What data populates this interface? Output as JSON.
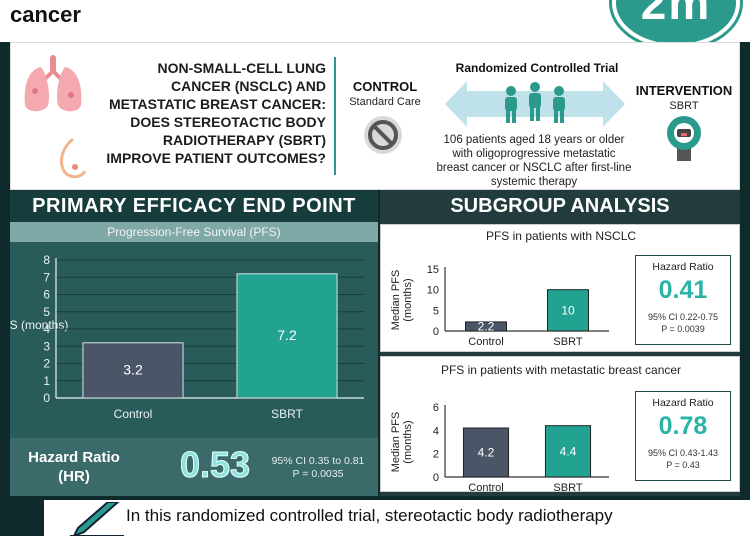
{
  "header": {
    "title": "cancer",
    "logo_text": "2m"
  },
  "top": {
    "question": "NON-SMALL-CELL LUNG CANCER (NSCLC) AND METASTATIC BREAST CANCER: DOES STEREOTACTIC BODY RADIOTHERAPY (SBRT) IMPROVE PATIENT OUTCOMES?",
    "control_title": "CONTROL",
    "control_sub": "Standard Care",
    "rct_title": "Randomized Controlled Trial",
    "rct_desc": "106 patients aged 18 years or older with oligoprogressive metastatic breast cancer or NSCLC after first-line systemic therapy",
    "intervention_title": "INTERVENTION",
    "intervention_sub": "SBRT",
    "icons": [
      "lung-icon",
      "breast-icon",
      "no-symbol-icon",
      "people-icon",
      "radiotherapy-machine-icon"
    ]
  },
  "primary": {
    "title": "PRIMARY EFFICACY END POINT",
    "subtitle": "Progression-Free Survival (PFS)",
    "hr_label": "Hazard Ratio (HR)",
    "hr_value": "0.53",
    "hr_ci": "95% CI 0.35 to 0.81",
    "hr_p": "P = 0.0035"
  },
  "subgroup": {
    "title": "SUBGROUP ANALYSIS",
    "nsclc_title": "PFS in patients with NSCLC",
    "nsclc_hr_title": "Hazard Ratio",
    "nsclc_hr_value": "0.41",
    "nsclc_hr_ci": "95% CI 0.22-0.75",
    "nsclc_hr_p": "P = 0.0039",
    "bc_title": "PFS in patients with metastatic breast cancer",
    "bc_hr_title": "Hazard Ratio",
    "bc_hr_value": "0.78",
    "bc_hr_ci": "95% CI 0.43-1.43",
    "bc_hr_p": "P = 0.43"
  },
  "footer": {
    "text": "In this randomized controlled trial, stereotactic body radiotherapy",
    "icon": "pencil-icon"
  },
  "colors": {
    "teal": "#2b9a8c",
    "control_bar": "#4a5668",
    "sbrt_bar": "#22a392",
    "dark": "#173c3c"
  },
  "chart_data": [
    {
      "type": "bar",
      "title": "Progression-Free Survival (PFS)",
      "categories": [
        "Control",
        "SBRT"
      ],
      "values": [
        3.2,
        7.2
      ],
      "ylabel": "Median PFS (months)",
      "ylim": [
        0,
        8
      ],
      "yticks": [
        0,
        1,
        2,
        3,
        4,
        5,
        6,
        7,
        8
      ],
      "grid": true
    },
    {
      "type": "bar",
      "title": "PFS in patients with NSCLC",
      "categories": [
        "Control",
        "SBRT"
      ],
      "values": [
        2.2,
        10
      ],
      "ylabel": "Median PFS (months)",
      "ylim": [
        0,
        15
      ],
      "yticks": [
        0,
        5,
        10,
        15
      ],
      "grid": false
    },
    {
      "type": "bar",
      "title": "PFS in patients with metastatic breast cancer",
      "categories": [
        "Control",
        "SBRT"
      ],
      "values": [
        4.2,
        4.4
      ],
      "ylabel": "Median PFS (months)",
      "ylim": [
        0,
        6
      ],
      "yticks": [
        0,
        2,
        4,
        6
      ],
      "grid": false
    }
  ]
}
